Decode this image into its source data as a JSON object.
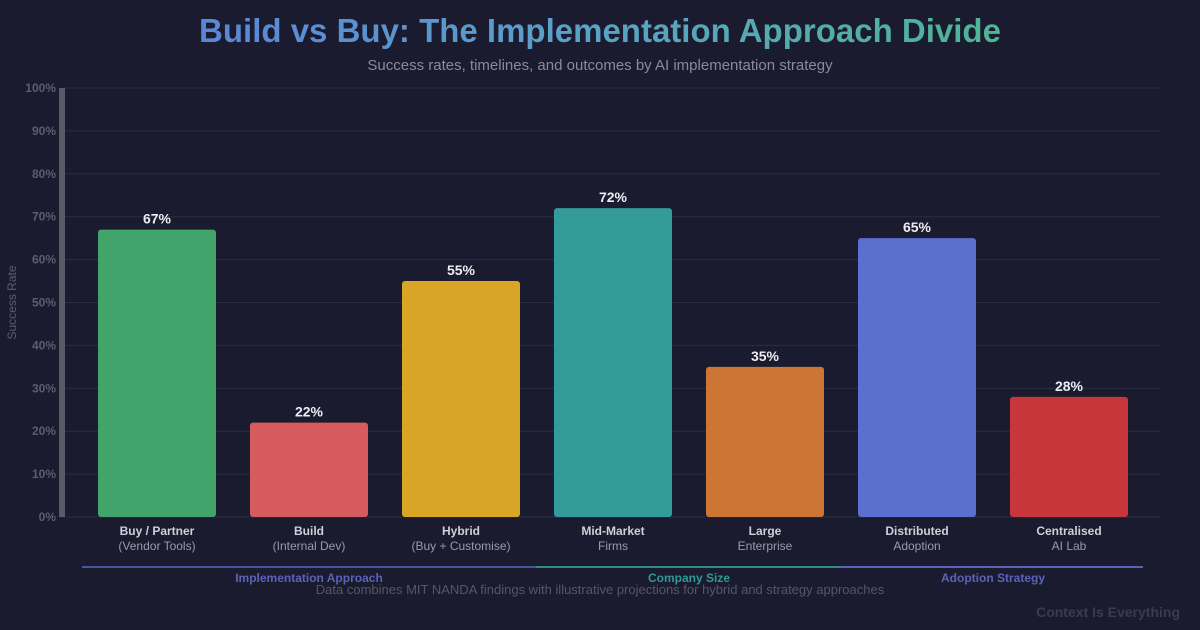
{
  "header": {
    "title": "Build vs Buy: The Implementation Approach Divide",
    "subtitle": "Success rates, timelines, and outcomes by AI implementation strategy"
  },
  "chart_data": {
    "type": "bar",
    "ylabel": "Success Rate",
    "ylim": [
      0,
      100
    ],
    "yticks": [
      "0%",
      "10%",
      "20%",
      "30%",
      "40%",
      "50%",
      "60%",
      "70%",
      "80%",
      "90%",
      "100%"
    ],
    "grid": true,
    "categories": [
      {
        "label": "Buy / Partner",
        "sub": "(Vendor Tools)",
        "value": 67,
        "display": "67%",
        "color": "#41a46b"
      },
      {
        "label": "Build",
        "sub": "(Internal Dev)",
        "value": 22,
        "display": "22%",
        "color": "#d55b5e"
      },
      {
        "label": "Hybrid",
        "sub": "(Buy + Customise)",
        "value": 55,
        "display": "55%",
        "color": "#d9a526"
      },
      {
        "label": "Mid-Market",
        "sub": "Firms",
        "value": 72,
        "display": "72%",
        "color": "#339b99"
      },
      {
        "label": "Large",
        "sub": "Enterprise",
        "value": 35,
        "display": "35%",
        "color": "#cd7535"
      },
      {
        "label": "Distributed",
        "sub": "Adoption",
        "value": 65,
        "display": "65%",
        "color": "#5b6fcf"
      },
      {
        "label": "Centralised",
        "sub": "AI Lab",
        "value": 28,
        "display": "28%",
        "color": "#c7363b"
      }
    ],
    "groups": [
      {
        "label": "Implementation Approach",
        "from": 0,
        "to": 2,
        "color": "#4a55a0"
      },
      {
        "label": "Company Size",
        "from": 3,
        "to": 4,
        "color": "#2f8a86"
      },
      {
        "label": "Adoption Strategy",
        "from": 5,
        "to": 6,
        "color": "#5a63b8"
      }
    ]
  },
  "footer": {
    "note": "Data combines MIT NANDA findings with illustrative projections for hybrid and strategy approaches",
    "watermark": "Context Is Everything"
  }
}
